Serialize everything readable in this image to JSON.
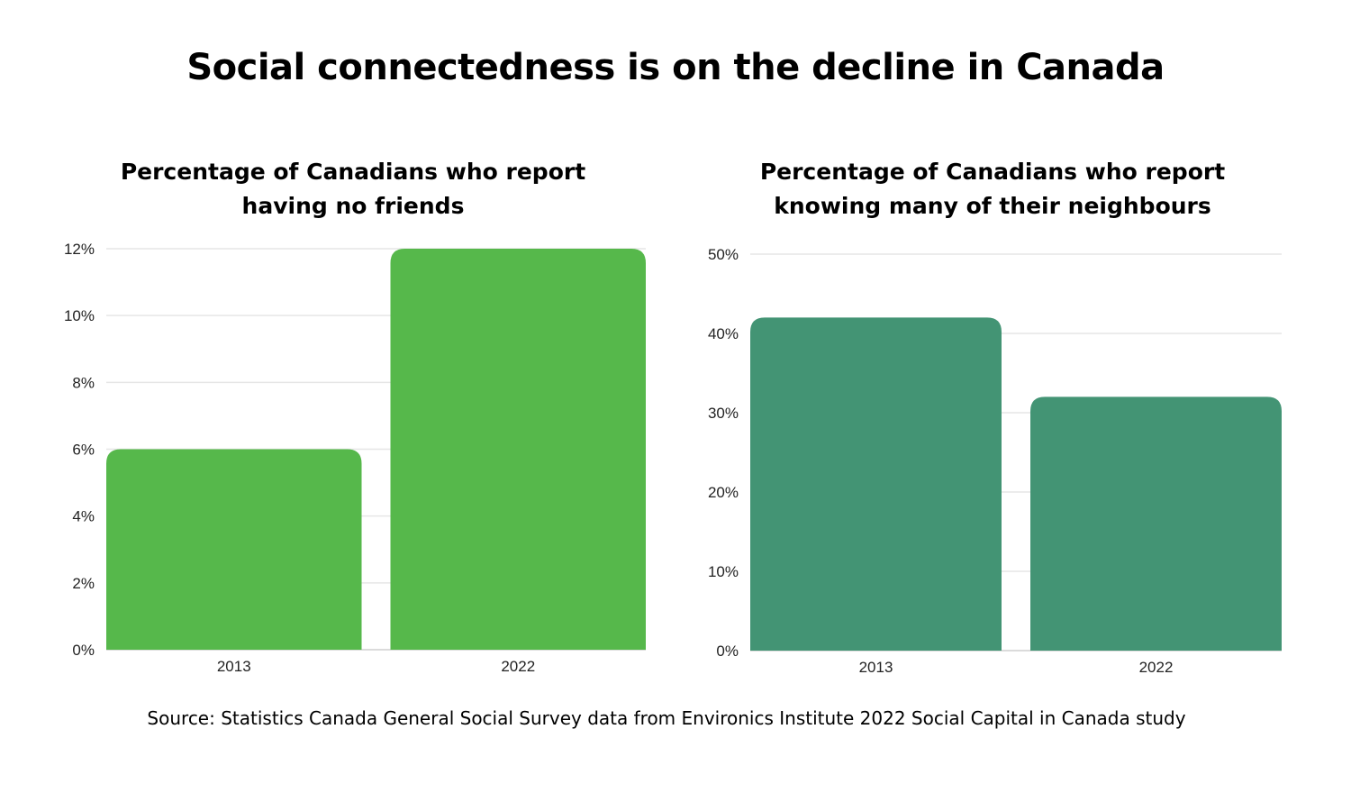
{
  "title": "Social connectedness is on the decline in Canada",
  "source": "Source: Statistics Canada General Social Survey data from Environics Institute 2022 Social Capital in Canada study",
  "chart_data": [
    {
      "type": "bar",
      "title": "Percentage of Canadians who report\nhaving no friends",
      "categories": [
        "2013",
        "2022"
      ],
      "values": [
        6,
        12
      ],
      "unit": "%",
      "xlabel": "",
      "ylabel": "",
      "ylim": [
        0,
        12
      ],
      "yticks": [
        0,
        2,
        4,
        6,
        8,
        10,
        12
      ],
      "ytick_labels": [
        "0%",
        "2%",
        "4%",
        "6%",
        "8%",
        "10%",
        "12%"
      ],
      "grid": true,
      "color": "#56b84b"
    },
    {
      "type": "bar",
      "title": "Percentage of Canadians who report\nknowing many of their neighbours",
      "categories": [
        "2013",
        "2022"
      ],
      "values": [
        42,
        32
      ],
      "unit": "%",
      "xlabel": "",
      "ylabel": "",
      "ylim": [
        0,
        50
      ],
      "yticks": [
        0,
        10,
        20,
        30,
        40,
        50
      ],
      "ytick_labels": [
        "0%",
        "10%",
        "20%",
        "30%",
        "40%",
        "50%"
      ],
      "grid": true,
      "color": "#439474"
    }
  ]
}
